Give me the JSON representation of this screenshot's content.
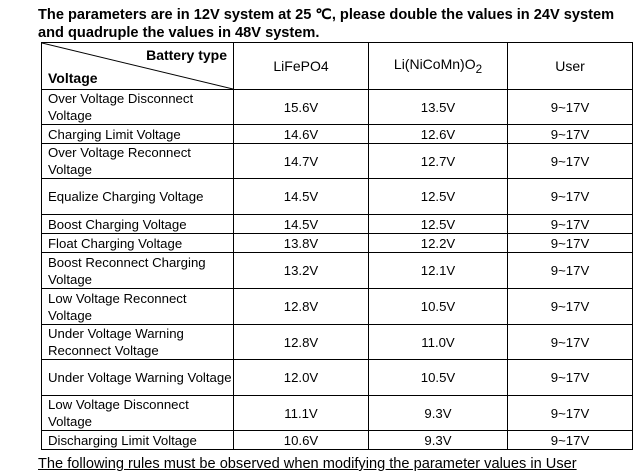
{
  "intro": "The parameters are in 12V system at 25 ℃, please double the values in 24V system and quadruple the values in 48V system.",
  "header": {
    "battery_type": "Battery type",
    "voltage": "Voltage",
    "col_lifepo4": "LiFePO4",
    "col_linicomn_pre": "Li(NiCoMn)O",
    "col_linicomn_sub": "2",
    "col_user": "User"
  },
  "rows": [
    {
      "label": "Over Voltage Disconnect Voltage",
      "lifepo4": "15.6V",
      "nicomn": "13.5V",
      "user": "9~17V",
      "h": 35
    },
    {
      "label": "Charging Limit Voltage",
      "lifepo4": "14.6V",
      "nicomn": "12.6V",
      "user": "9~17V",
      "h": 19
    },
    {
      "label": "Over Voltage Reconnect Voltage",
      "lifepo4": "14.7V",
      "nicomn": "12.7V",
      "user": "9~17V",
      "h": 35
    },
    {
      "label": "Equalize Charging Voltage",
      "lifepo4": "14.5V",
      "nicomn": "12.5V",
      "user": "9~17V",
      "h": 36
    },
    {
      "label": "Boost Charging Voltage",
      "lifepo4": "14.5V",
      "nicomn": "12.5V",
      "user": "9~17V",
      "h": 19
    },
    {
      "label": "Float Charging Voltage",
      "lifepo4": "13.8V",
      "nicomn": "12.2V",
      "user": "9~17V",
      "h": 19
    },
    {
      "label": "Boost Reconnect Charging Voltage",
      "lifepo4": "13.2V",
      "nicomn": "12.1V",
      "user": "9~17V",
      "h": 36
    },
    {
      "label": "Low Voltage Reconnect Voltage",
      "lifepo4": "12.8V",
      "nicomn": "10.5V",
      "user": "9~17V",
      "h": 36
    },
    {
      "label": "Under Voltage Warning Reconnect Voltage",
      "lifepo4": "12.8V",
      "nicomn": "11.0V",
      "user": "9~17V",
      "h": 35
    },
    {
      "label": "Under Voltage Warning Voltage",
      "lifepo4": "12.0V",
      "nicomn": "10.5V",
      "user": "9~17V",
      "h": 36
    },
    {
      "label": "Low Voltage Disconnect Voltage",
      "lifepo4": "11.1V",
      "nicomn": "9.3V",
      "user": "9~17V",
      "h": 35
    },
    {
      "label": "Discharging Limit Voltage",
      "lifepo4": "10.6V",
      "nicomn": "9.3V",
      "user": "9~17V",
      "h": 19
    }
  ],
  "footer_text": "The following rules must be observed when modifying the parameter values in User"
}
